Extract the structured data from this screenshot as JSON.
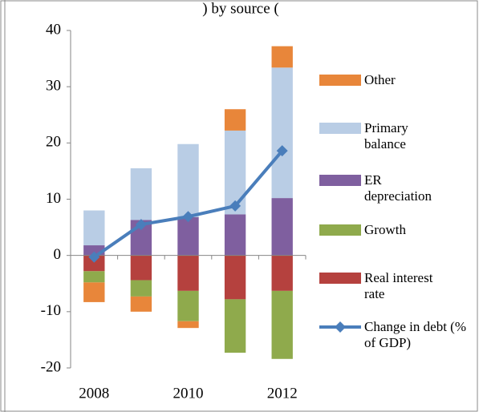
{
  "chart_data": {
    "type": "stacked-bar-line",
    "title": ") by source (",
    "categories": [
      "2008",
      null,
      "2010",
      null,
      "2012"
    ],
    "series": [
      {
        "name": "Real interest rate",
        "color": "#b5413e",
        "values": [
          -2.8,
          -4.4,
          -6.3,
          -7.8,
          -6.3
        ]
      },
      {
        "name": "Growth",
        "color": "#8faa4c",
        "values": [
          -2.0,
          -2.9,
          -5.4,
          -9.5,
          -12.1
        ]
      },
      {
        "name": "ER depreciation",
        "color": "#7f5f9f",
        "values": [
          1.8,
          6.3,
          6.8,
          7.3,
          10.2
        ]
      },
      {
        "name": "Primary balance",
        "color": "#b9cde5",
        "values": [
          6.2,
          9.2,
          13.0,
          14.9,
          23.2
        ]
      },
      {
        "name": "Other",
        "color": "#e8863a",
        "values": [
          -3.5,
          -2.7,
          -1.2,
          3.8,
          3.8
        ]
      }
    ],
    "line": {
      "name": "Change in debt (% of GDP)",
      "color": "#4a7ebb",
      "values": [
        -0.3,
        5.5,
        6.9,
        8.8,
        18.6
      ]
    },
    "ylim": [
      -20,
      40
    ],
    "yticks": [
      -20,
      -10,
      0,
      10,
      20,
      30,
      40
    ],
    "grid": false
  }
}
